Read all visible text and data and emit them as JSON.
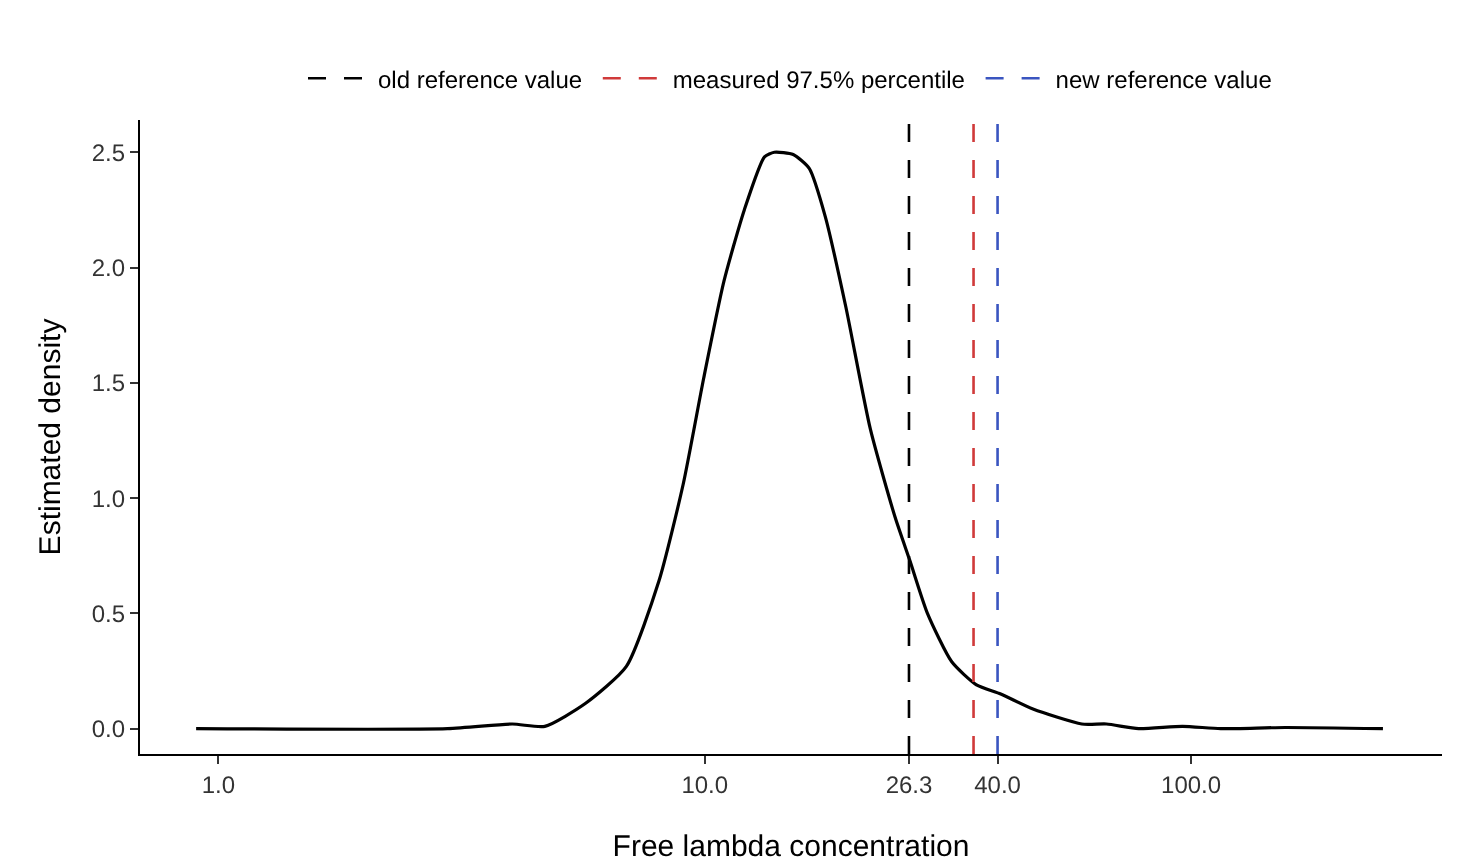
{
  "chart_data": {
    "type": "line",
    "xlabel": "Free lambda concentration",
    "ylabel": "Estimated density",
    "log": "x",
    "x": [
      0.9,
      2.96,
      4.02,
      4.69,
      5.69,
      6.9,
      8.05,
      9.03,
      9.95,
      10.95,
      12.06,
      13.27,
      13.9,
      15.2,
      16.4,
      17.7,
      19.5,
      21.9,
      24.6,
      26.4,
      28.7,
      32.2,
      36.2,
      40.6,
      47.3,
      59.6,
      67,
      78,
      96,
      115,
      156,
      248
    ],
    "series": [
      {
        "color": "#000000",
        "values": [
          0,
          0,
          0.02,
          0.01,
          0.11,
          0.27,
          0.64,
          1.06,
          1.52,
          1.94,
          2.25,
          2.48,
          2.5,
          2.49,
          2.43,
          2.22,
          1.83,
          1.3,
          0.92,
          0.73,
          0.5,
          0.29,
          0.19,
          0.15,
          0.085,
          0.02,
          0.02,
          0,
          0.01,
          0,
          0.005,
          0
        ]
      }
    ],
    "xlim": [
      0.69,
      328
    ],
    "ylim": [
      -0.11,
      2.64
    ],
    "xticks": [
      {
        "value": 1,
        "label": "1.0"
      },
      {
        "value": 10,
        "label": "10.0"
      },
      {
        "value": 26.3,
        "label": "26.3"
      },
      {
        "value": 40,
        "label": "40.0"
      },
      {
        "value": 100,
        "label": "100.0"
      }
    ],
    "yticks": [
      {
        "value": 0,
        "label": "0.0"
      },
      {
        "value": 0.5,
        "label": "0.5"
      },
      {
        "value": 1,
        "label": "1.0"
      },
      {
        "value": 1.5,
        "label": "1.5"
      },
      {
        "value": 2,
        "label": "2.0"
      },
      {
        "value": 2.5,
        "label": "2.5"
      }
    ],
    "ref_lines": [
      {
        "axis": "x",
        "value": 26.3,
        "label": "old reference value",
        "color": "#000000",
        "line_style": "dashed"
      },
      {
        "axis": "x",
        "value": 35.7,
        "label": "measured 97.5% percentile",
        "color": "#d03a3a",
        "line_style": "dashed"
      },
      {
        "axis": "x",
        "value": 40,
        "label": "new reference value",
        "color": "#3a55c0",
        "line_style": "dashed"
      }
    ],
    "grid": false,
    "legend": "top",
    "marker": "none",
    "line_style": "solid"
  }
}
